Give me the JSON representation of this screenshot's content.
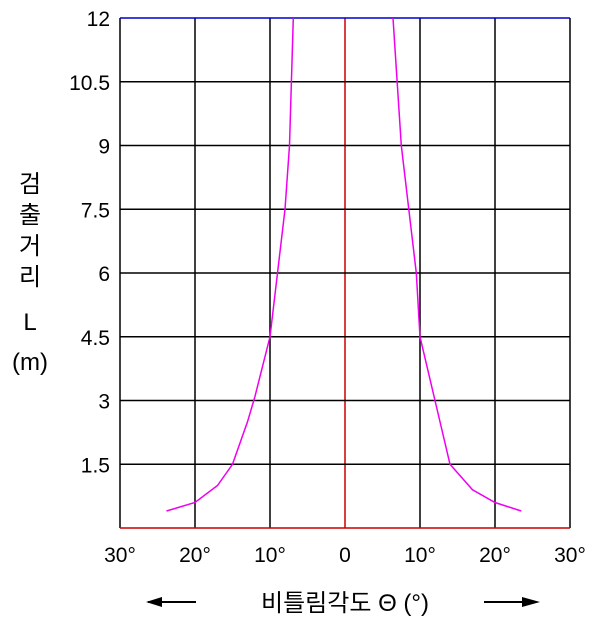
{
  "chart_data": {
    "type": "line",
    "title": "",
    "xlabel": "비틀림각도 Θ (°)",
    "ylabel_lines": [
      "검",
      "출",
      "거",
      "리",
      "L",
      "(m)"
    ],
    "x_range": [
      -30,
      30
    ],
    "y_range": [
      0,
      12
    ],
    "x_tick_labels": [
      "30°",
      "20°",
      "10°",
      "0",
      "10°",
      "20°",
      "30°"
    ],
    "y_tick_labels": [
      "12",
      "10.5",
      "9",
      "7.5",
      "6",
      "4.5",
      "3",
      "1.5"
    ],
    "grid": true,
    "series": [
      {
        "side": "left",
        "points": [
          {
            "x": -23.8,
            "y": 0.4
          },
          {
            "x": -20.0,
            "y": 0.6
          },
          {
            "x": -17.0,
            "y": 1.0
          },
          {
            "x": -15.0,
            "y": 1.5
          },
          {
            "x": -13.0,
            "y": 2.5
          },
          {
            "x": -12.0,
            "y": 3.1
          },
          {
            "x": -10.0,
            "y": 4.5
          },
          {
            "x": -9.0,
            "y": 6.0
          },
          {
            "x": -8.0,
            "y": 7.5
          },
          {
            "x": -7.4,
            "y": 9.0
          },
          {
            "x": -6.9,
            "y": 12.0
          }
        ]
      },
      {
        "side": "right",
        "points": [
          {
            "x": 6.4,
            "y": 12.0
          },
          {
            "x": 7.5,
            "y": 9.0
          },
          {
            "x": 8.5,
            "y": 7.5
          },
          {
            "x": 9.5,
            "y": 6.0
          },
          {
            "x": 10.0,
            "y": 4.5
          },
          {
            "x": 12.0,
            "y": 3.0
          },
          {
            "x": 14.0,
            "y": 1.5
          },
          {
            "x": 17.0,
            "y": 0.9
          },
          {
            "x": 20.0,
            "y": 0.6
          },
          {
            "x": 23.5,
            "y": 0.4
          }
        ]
      }
    ],
    "colors": {
      "curve": "#ee00ee",
      "grid": "#000000",
      "top_border": "#0000cc",
      "axis_red": "#cc0000"
    }
  }
}
